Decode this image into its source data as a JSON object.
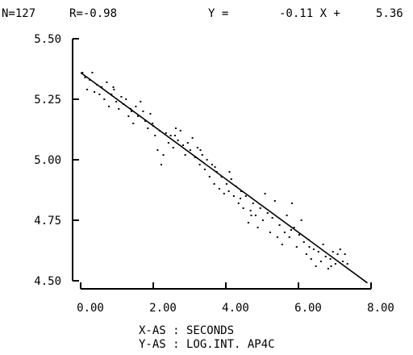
{
  "header": {
    "n": "N=127",
    "r": "R=-0.98",
    "eq_y": "Y =",
    "eq_slope": "-0.11 X +",
    "eq_intercept": "5.36"
  },
  "footer": {
    "x_axis": "X-AS : SECONDS",
    "y_axis": "Y-AS : LOG.INT. AP4C"
  },
  "chart_data": {
    "type": "scatter",
    "title": "",
    "xlabel": "X-AS : SECONDS",
    "ylabel": "Y-AS : LOG.INT. AP4C",
    "xlim": [
      0,
      8
    ],
    "ylim": [
      4.5,
      5.5
    ],
    "x_ticks": [
      "0.00",
      "2.00",
      "4.00",
      "6.00",
      "8.00"
    ],
    "x_tick_values": [
      0,
      2,
      4,
      6,
      8
    ],
    "y_ticks": [
      "4.50",
      "4.75",
      "5.00",
      "5.25",
      "5.50"
    ],
    "y_tick_values": [
      4.5,
      4.75,
      5.0,
      5.25,
      5.5
    ],
    "grid": false,
    "n": 127,
    "r": -0.98,
    "regression": {
      "slope": -0.11,
      "intercept": 5.36,
      "x_range": [
        0.0,
        7.9
      ]
    },
    "points": [
      {
        "x": 0.05,
        "y": 5.36
      },
      {
        "x": 0.12,
        "y": 5.34
      },
      {
        "x": 0.18,
        "y": 5.29
      },
      {
        "x": 0.25,
        "y": 5.33
      },
      {
        "x": 0.32,
        "y": 5.36
      },
      {
        "x": 0.38,
        "y": 5.28
      },
      {
        "x": 0.45,
        "y": 5.31
      },
      {
        "x": 0.52,
        "y": 5.27
      },
      {
        "x": 0.58,
        "y": 5.3
      },
      {
        "x": 0.65,
        "y": 5.25
      },
      {
        "x": 0.72,
        "y": 5.32
      },
      {
        "x": 0.78,
        "y": 5.22
      },
      {
        "x": 0.85,
        "y": 5.27
      },
      {
        "x": 0.92,
        "y": 5.29
      },
      {
        "x": 0.98,
        "y": 5.24
      },
      {
        "x": 1.05,
        "y": 5.21
      },
      {
        "x": 1.12,
        "y": 5.26
      },
      {
        "x": 1.18,
        "y": 5.23
      },
      {
        "x": 1.25,
        "y": 5.25
      },
      {
        "x": 1.32,
        "y": 5.18
      },
      {
        "x": 1.38,
        "y": 5.21
      },
      {
        "x": 1.45,
        "y": 5.15
      },
      {
        "x": 1.52,
        "y": 5.22
      },
      {
        "x": 1.58,
        "y": 5.18
      },
      {
        "x": 1.65,
        "y": 5.24
      },
      {
        "x": 1.72,
        "y": 5.2
      },
      {
        "x": 1.78,
        "y": 5.16
      },
      {
        "x": 1.85,
        "y": 5.13
      },
      {
        "x": 1.92,
        "y": 5.19
      },
      {
        "x": 1.98,
        "y": 5.15
      },
      {
        "x": 2.05,
        "y": 5.1
      },
      {
        "x": 2.12,
        "y": 5.04
      },
      {
        "x": 2.18,
        "y": 5.12
      },
      {
        "x": 2.22,
        "y": 4.98
      },
      {
        "x": 2.28,
        "y": 5.02
      },
      {
        "x": 2.35,
        "y": 5.11
      },
      {
        "x": 2.42,
        "y": 5.07
      },
      {
        "x": 2.48,
        "y": 5.1
      },
      {
        "x": 2.55,
        "y": 5.05
      },
      {
        "x": 2.62,
        "y": 5.13
      },
      {
        "x": 2.68,
        "y": 5.08
      },
      {
        "x": 2.75,
        "y": 5.12
      },
      {
        "x": 2.82,
        "y": 5.06
      },
      {
        "x": 2.88,
        "y": 5.02
      },
      {
        "x": 2.95,
        "y": 5.07
      },
      {
        "x": 3.02,
        "y": 5.04
      },
      {
        "x": 3.08,
        "y": 5.09
      },
      {
        "x": 3.15,
        "y": 5.01
      },
      {
        "x": 3.22,
        "y": 5.05
      },
      {
        "x": 3.28,
        "y": 4.98
      },
      {
        "x": 3.35,
        "y": 5.02
      },
      {
        "x": 3.42,
        "y": 4.96
      },
      {
        "x": 3.48,
        "y": 5.0
      },
      {
        "x": 3.55,
        "y": 4.93
      },
      {
        "x": 3.62,
        "y": 4.98
      },
      {
        "x": 3.68,
        "y": 4.9
      },
      {
        "x": 3.75,
        "y": 4.95
      },
      {
        "x": 3.82,
        "y": 4.88
      },
      {
        "x": 3.88,
        "y": 4.93
      },
      {
        "x": 3.95,
        "y": 4.86
      },
      {
        "x": 4.02,
        "y": 4.9
      },
      {
        "x": 4.08,
        "y": 4.87
      },
      {
        "x": 4.15,
        "y": 4.92
      },
      {
        "x": 4.22,
        "y": 4.85
      },
      {
        "x": 4.28,
        "y": 4.89
      },
      {
        "x": 4.35,
        "y": 4.82
      },
      {
        "x": 4.42,
        "y": 4.87
      },
      {
        "x": 4.48,
        "y": 4.8
      },
      {
        "x": 4.55,
        "y": 4.85
      },
      {
        "x": 4.62,
        "y": 4.74
      },
      {
        "x": 4.68,
        "y": 4.79
      },
      {
        "x": 4.75,
        "y": 4.82
      },
      {
        "x": 4.82,
        "y": 4.77
      },
      {
        "x": 4.88,
        "y": 4.72
      },
      {
        "x": 4.95,
        "y": 4.8
      },
      {
        "x": 5.02,
        "y": 4.75
      },
      {
        "x": 5.08,
        "y": 4.86
      },
      {
        "x": 5.15,
        "y": 4.78
      },
      {
        "x": 5.22,
        "y": 4.7
      },
      {
        "x": 5.28,
        "y": 4.76
      },
      {
        "x": 5.35,
        "y": 4.83
      },
      {
        "x": 5.42,
        "y": 4.68
      },
      {
        "x": 5.48,
        "y": 4.73
      },
      {
        "x": 5.55,
        "y": 4.65
      },
      {
        "x": 5.62,
        "y": 4.7
      },
      {
        "x": 5.68,
        "y": 4.77
      },
      {
        "x": 5.75,
        "y": 4.68
      },
      {
        "x": 5.82,
        "y": 4.82
      },
      {
        "x": 5.88,
        "y": 4.72
      },
      {
        "x": 5.95,
        "y": 4.64
      },
      {
        "x": 6.02,
        "y": 4.69
      },
      {
        "x": 6.08,
        "y": 4.75
      },
      {
        "x": 6.15,
        "y": 4.66
      },
      {
        "x": 6.22,
        "y": 4.61
      },
      {
        "x": 6.28,
        "y": 4.67
      },
      {
        "x": 6.35,
        "y": 4.59
      },
      {
        "x": 6.42,
        "y": 4.63
      },
      {
        "x": 6.48,
        "y": 4.56
      },
      {
        "x": 6.55,
        "y": 4.62
      },
      {
        "x": 6.62,
        "y": 4.58
      },
      {
        "x": 6.68,
        "y": 4.65
      },
      {
        "x": 6.75,
        "y": 4.6
      },
      {
        "x": 6.82,
        "y": 4.55
      },
      {
        "x": 6.88,
        "y": 4.59
      },
      {
        "x": 6.95,
        "y": 4.62
      },
      {
        "x": 7.02,
        "y": 4.57
      },
      {
        "x": 7.08,
        "y": 4.61
      },
      {
        "x": 7.15,
        "y": 4.63
      },
      {
        "x": 7.22,
        "y": 4.58
      },
      {
        "x": 7.28,
        "y": 4.61
      },
      {
        "x": 7.35,
        "y": 4.57
      },
      {
        "x": 4.1,
        "y": 4.95
      },
      {
        "x": 3.7,
        "y": 4.97
      },
      {
        "x": 2.6,
        "y": 5.1
      },
      {
        "x": 1.4,
        "y": 5.2
      },
      {
        "x": 0.9,
        "y": 5.3
      },
      {
        "x": 4.7,
        "y": 4.77
      },
      {
        "x": 5.8,
        "y": 4.71
      },
      {
        "x": 6.3,
        "y": 4.64
      },
      {
        "x": 4.4,
        "y": 4.84
      },
      {
        "x": 3.3,
        "y": 5.04
      },
      {
        "x": 2.0,
        "y": 5.14
      },
      {
        "x": 6.9,
        "y": 4.56
      }
    ]
  }
}
